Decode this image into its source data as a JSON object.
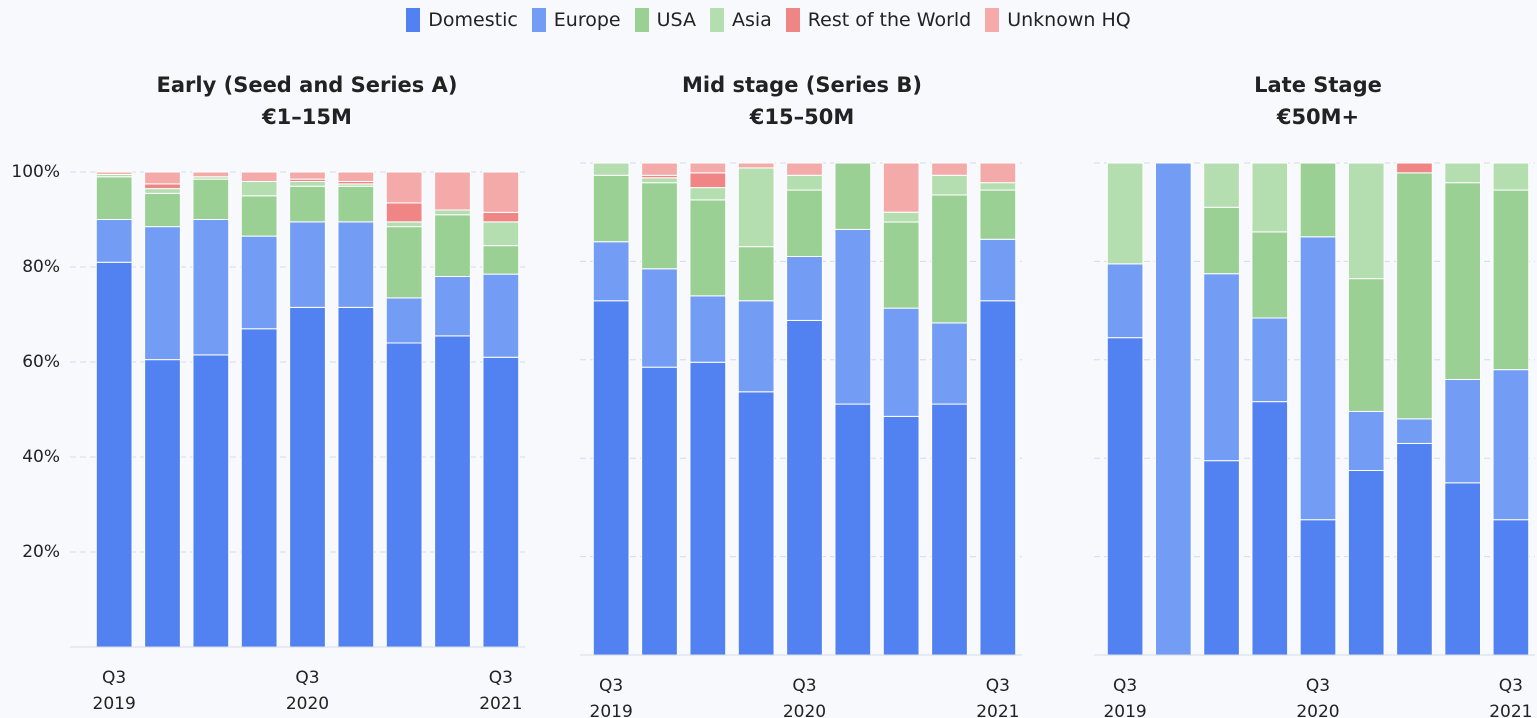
{
  "chart_data": [
    {
      "type": "bar",
      "stacked": true,
      "title": "Early (Seed and Series A)",
      "subtitle": "€1–15M",
      "categories": [
        "Q3\n2019",
        null,
        null,
        null,
        "Q3\n2020",
        null,
        null,
        null,
        "Q3\n2021"
      ],
      "ylim": [
        0,
        100
      ],
      "yticks": [
        {
          "value": 20,
          "label": "20%"
        },
        {
          "value": 40,
          "label": "40%"
        },
        {
          "value": 60,
          "label": "60%"
        },
        {
          "value": 80,
          "label": "80%"
        },
        {
          "value": 100,
          "label": "100%"
        }
      ],
      "grid": true,
      "show_tick_labels": true,
      "series": [
        {
          "name": "Domestic",
          "color": "#5282f1",
          "values": [
            81,
            60.5,
            61.5,
            67,
            71.5,
            71.5,
            64,
            65.5,
            61
          ]
        },
        {
          "name": "Europe",
          "color": "#739cf4",
          "values": [
            9,
            28,
            28.5,
            19.5,
            18,
            18,
            9.5,
            12.5,
            17.5
          ]
        },
        {
          "name": "USA",
          "color": "#9bd094",
          "values": [
            9,
            7,
            8.5,
            8.5,
            7.5,
            7.5,
            15,
            13,
            6
          ]
        },
        {
          "name": "Asia",
          "color": "#b5deb0",
          "values": [
            0.5,
            1,
            0.5,
            3,
            1,
            0.5,
            1,
            1,
            5
          ]
        },
        {
          "name": "Rest of the World",
          "color": "#f08585",
          "values": [
            0,
            1,
            0,
            0,
            0.5,
            0.5,
            4,
            0,
            2
          ]
        },
        {
          "name": "Unknown HQ",
          "color": "#f5aaaa",
          "values": [
            0.5,
            2.5,
            1,
            2,
            1.5,
            2,
            6.5,
            8,
            8.5
          ]
        }
      ]
    },
    {
      "type": "bar",
      "stacked": true,
      "title": "Mid stage (Series B)",
      "subtitle": "€15–50M",
      "categories": [
        "Q3\n2019",
        null,
        null,
        null,
        "Q3\n2020",
        null,
        null,
        null,
        "Q3\n2021"
      ],
      "ylim": [
        0,
        100
      ],
      "yticks": [
        20,
        40,
        60,
        80,
        100
      ],
      "grid": true,
      "show_tick_labels": false,
      "series": [
        {
          "name": "Domestic",
          "color": "#5282f1",
          "values": [
            72,
            58.5,
            59.5,
            53.5,
            68,
            51,
            48.5,
            51,
            72
          ]
        },
        {
          "name": "Europe",
          "color": "#739cf4",
          "values": [
            12,
            20,
            13.5,
            18.5,
            13,
            35.5,
            22,
            16.5,
            12.5
          ]
        },
        {
          "name": "USA",
          "color": "#9bd094",
          "values": [
            13.5,
            17.5,
            19.5,
            11,
            13.5,
            13.5,
            17.5,
            26,
            10
          ]
        },
        {
          "name": "Asia",
          "color": "#b5deb0",
          "values": [
            2.5,
            1,
            2.5,
            16,
            3,
            0,
            2,
            4,
            1.5
          ]
        },
        {
          "name": "Rest of the World",
          "color": "#f08585",
          "values": [
            0,
            0.5,
            3,
            0,
            0,
            0,
            0,
            0,
            0
          ]
        },
        {
          "name": "Unknown HQ",
          "color": "#f5aaaa",
          "values": [
            0,
            2.5,
            2,
            1,
            2.5,
            0,
            10,
            2.5,
            4
          ]
        }
      ]
    },
    {
      "type": "bar",
      "stacked": true,
      "title": "Late Stage",
      "subtitle": "€50M+",
      "categories": [
        "Q3\n2019",
        null,
        null,
        null,
        "Q3\n2020",
        null,
        null,
        null,
        "Q3\n2021"
      ],
      "ylim": [
        0,
        100
      ],
      "yticks": [
        20,
        40,
        60,
        80,
        100
      ],
      "grid": true,
      "show_tick_labels": false,
      "series": [
        {
          "name": "Domestic",
          "color": "#5282f1",
          "values": [
            64.5,
            0,
            39.5,
            51.5,
            27.5,
            37.5,
            43,
            35,
            27.5
          ]
        },
        {
          "name": "Europe",
          "color": "#739cf4",
          "values": [
            15,
            100,
            38,
            17,
            57.5,
            12,
            5,
            21,
            30.5
          ]
        },
        {
          "name": "USA",
          "color": "#9bd094",
          "values": [
            0,
            0,
            13.5,
            17.5,
            15,
            27,
            50,
            40,
            36.5
          ]
        },
        {
          "name": "Asia",
          "color": "#b5deb0",
          "values": [
            20.5,
            0,
            9,
            14,
            0,
            23.5,
            0,
            4,
            5.5
          ]
        },
        {
          "name": "Rest of the World",
          "color": "#f08585",
          "values": [
            0,
            0,
            0,
            0,
            0,
            0,
            2,
            0,
            0
          ]
        },
        {
          "name": "Unknown HQ",
          "color": "#f5aaaa",
          "values": [
            0,
            0,
            0,
            0,
            0,
            0,
            0,
            0,
            0
          ]
        }
      ]
    }
  ]
}
